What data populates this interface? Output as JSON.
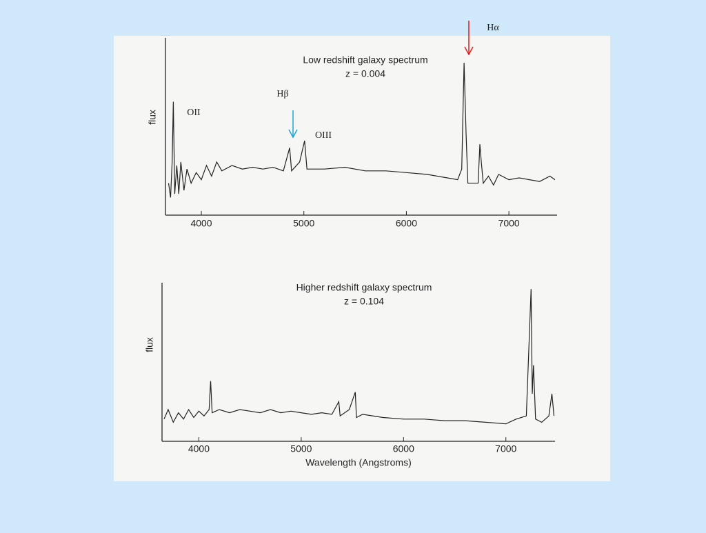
{
  "chart_data": [
    {
      "type": "line",
      "title": "Low redshift galaxy spectrum",
      "subtitle": "z = 0.004",
      "ylabel": "flux",
      "annotations": [
        "Hα",
        "Hβ",
        "OII",
        "OIII"
      ],
      "xlim": [
        3650,
        7470
      ],
      "xticks": [
        4000,
        5000,
        6000,
        7000
      ],
      "ylim": [
        0,
        100
      ],
      "grid": false,
      "series": [
        {
          "color": "#222222",
          "x": [
            3680,
            3700,
            3715,
            3727,
            3740,
            3760,
            3780,
            3800,
            3830,
            3860,
            3900,
            3950,
            4000,
            4050,
            4100,
            4150,
            4200,
            4300,
            4400,
            4500,
            4600,
            4700,
            4800,
            4861,
            4880,
            4959,
            5007,
            5030,
            5200,
            5400,
            5600,
            5800,
            6000,
            6200,
            6400,
            6500,
            6540,
            6563,
            6583,
            6600,
            6700,
            6717,
            6731,
            6750,
            6800,
            6850,
            6900,
            7000,
            7100,
            7200,
            7300,
            7400,
            7450
          ],
          "values": [
            18,
            10,
            30,
            64,
            12,
            28,
            12,
            30,
            14,
            26,
            18,
            24,
            20,
            28,
            22,
            30,
            25,
            28,
            26,
            27,
            26,
            27,
            25,
            38,
            25,
            30,
            42,
            26,
            26,
            27,
            25,
            25,
            24,
            23,
            21,
            20,
            26,
            86,
            45,
            18,
            18,
            40,
            30,
            18,
            22,
            17,
            23,
            20,
            21,
            20,
            19,
            22,
            20
          ]
        }
      ]
    },
    {
      "type": "line",
      "title": "Higher redshift galaxy spectrum",
      "subtitle": "z = 0.104",
      "ylabel": "flux",
      "xlabel": "Wavelength (Angstroms)",
      "xlim": [
        3640,
        7480
      ],
      "xticks": [
        4000,
        5000,
        6000,
        7000
      ],
      "ylim": [
        0,
        100
      ],
      "grid": false,
      "series": [
        {
          "color": "#222222",
          "x": [
            3660,
            3700,
            3750,
            3800,
            3850,
            3900,
            3950,
            4000,
            4050,
            4100,
            4115,
            4130,
            4200,
            4300,
            4400,
            4500,
            4600,
            4700,
            4800,
            4900,
            5000,
            5100,
            5200,
            5300,
            5367,
            5380,
            5470,
            5528,
            5540,
            5600,
            5800,
            6000,
            6200,
            6400,
            6600,
            6800,
            7000,
            7100,
            7200,
            7246,
            7258,
            7270,
            7290,
            7350,
            7420,
            7450,
            7470
          ],
          "values": [
            14,
            20,
            12,
            18,
            14,
            20,
            15,
            19,
            16,
            20,
            38,
            18,
            20,
            18,
            20,
            19,
            18,
            20,
            18,
            19,
            18,
            17,
            18,
            17,
            25,
            16,
            20,
            31,
            15,
            17,
            15,
            14,
            14,
            13,
            13,
            12,
            11,
            14,
            16,
            96,
            30,
            48,
            14,
            12,
            16,
            30,
            16
          ]
        }
      ]
    }
  ]
}
